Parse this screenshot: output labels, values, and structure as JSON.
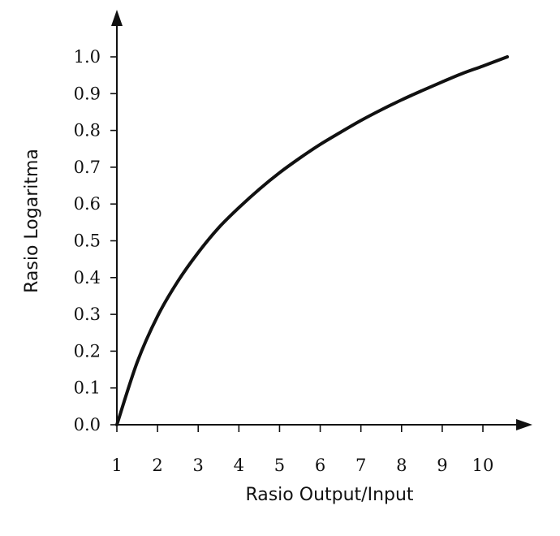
{
  "chart_data": {
    "type": "line",
    "title": "",
    "xlabel": "Rasio Output/Input",
    "ylabel": "Rasio Logaritma",
    "xlim": [
      1,
      10.6
    ],
    "ylim": [
      0,
      1.0
    ],
    "x_ticks": [
      "1",
      "2",
      "3",
      "4",
      "5",
      "6",
      "7",
      "8",
      "9",
      "10"
    ],
    "y_ticks": [
      "0.0",
      "0.1",
      "0.2",
      "0.3",
      "0.4",
      "0.5",
      "0.6",
      "0.7",
      "0.8",
      "0.9",
      "1.0"
    ],
    "grid": false,
    "legend": "none",
    "series": [
      {
        "x": [
          1,
          1.5,
          2,
          2.5,
          3,
          3.5,
          4,
          4.5,
          5,
          5.5,
          6,
          6.5,
          7,
          7.5,
          8,
          8.5,
          9,
          9.5,
          10,
          10.6
        ],
        "y": [
          0.0,
          0.17,
          0.295,
          0.39,
          0.468,
          0.535,
          0.59,
          0.64,
          0.685,
          0.725,
          0.762,
          0.795,
          0.827,
          0.856,
          0.883,
          0.908,
          0.932,
          0.955,
          0.975,
          1.0
        ],
        "color": "#111111"
      }
    ]
  }
}
